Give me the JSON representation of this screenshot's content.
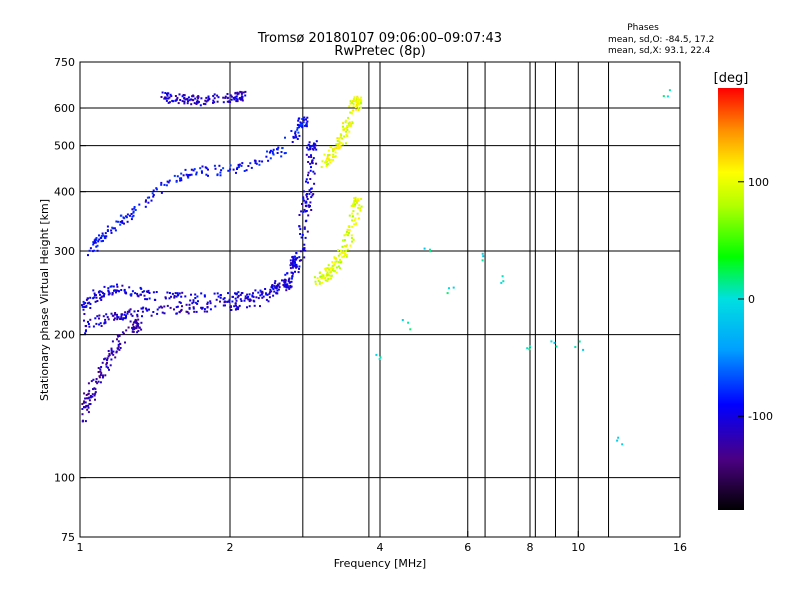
{
  "chart_data": {
    "type": "scatter",
    "title": "Tromsø 20180107 09:06:00–09:07:43",
    "subtitle": "RwPretec (8p)",
    "xlabel": "Frequency [MHz]",
    "ylabel": "Stationary phase Virtual Height [km]",
    "xscale": "log",
    "yscale": "log",
    "xlim": [
      1,
      16
    ],
    "ylim": [
      75,
      750
    ],
    "xticks": [
      1,
      2,
      4,
      6,
      8,
      10,
      16
    ],
    "yticks": [
      75,
      100,
      200,
      300,
      400,
      500,
      600,
      750
    ],
    "x_gridlines": [
      2,
      4,
      6,
      8,
      10
    ],
    "y_gridlines": [
      100,
      200,
      300,
      400,
      500,
      600
    ],
    "x_minor_lines": [
      2.8,
      3.8,
      6.5,
      8.2,
      9.0,
      11.5
    ],
    "legend": {
      "title": "Phases",
      "lines": [
        "mean, sd,O: -84.5, 17.2",
        "mean, sd,X:  93.1, 22.4"
      ]
    },
    "colorbar": {
      "label": "[deg]",
      "range": [
        -180,
        180
      ],
      "ticks": [
        100,
        0,
        -100
      ],
      "tick_labels": [
        "100",
        "0",
        "-100"
      ]
    },
    "series": [
      {
        "trace": "o_low_band",
        "phase": -100,
        "x": [
          1.0,
          1.05,
          1.1,
          1.2,
          1.3,
          1.5,
          1.7,
          2.0,
          2.2,
          2.4,
          2.6,
          2.7
        ],
        "y": [
          225,
          235,
          245,
          250,
          245,
          240,
          238,
          240,
          242,
          248,
          262,
          285
        ]
      },
      {
        "trace": "o_low_band_lower",
        "phase": -110,
        "x": [
          1.0,
          1.1,
          1.2,
          1.3,
          1.5,
          1.7,
          2.0,
          2.3,
          2.6
        ],
        "y": [
          205,
          215,
          220,
          222,
          225,
          228,
          230,
          235,
          255
        ]
      },
      {
        "trace": "o_bottom_tail",
        "phase": -120,
        "x": [
          1.0,
          1.02,
          1.05,
          1.1,
          1.15,
          1.2,
          1.3
        ],
        "y": [
          130,
          140,
          150,
          165,
          180,
          195,
          210
        ]
      },
      {
        "trace": "o_upper_branch",
        "phase": -90,
        "x": [
          1.05,
          1.1,
          1.2,
          1.3,
          1.5,
          1.7,
          2.0,
          2.3,
          2.6,
          2.8
        ],
        "y": [
          300,
          320,
          340,
          370,
          420,
          440,
          445,
          460,
          500,
          560
        ]
      },
      {
        "trace": "o_cusp",
        "phase": -105,
        "x": [
          2.75,
          2.8,
          2.85,
          2.9,
          2.92
        ],
        "y": [
          270,
          330,
          380,
          420,
          500
        ]
      },
      {
        "trace": "o_top",
        "phase": -110,
        "x": [
          1.45,
          1.55,
          1.65,
          1.75,
          1.95,
          2.1
        ],
        "y": [
          635,
          628,
          625,
          622,
          628,
          635
        ]
      },
      {
        "trace": "x_trace",
        "phase": 95,
        "x": [
          3.0,
          3.1,
          3.2,
          3.3,
          3.4,
          3.5,
          3.6
        ],
        "y": [
          260,
          265,
          275,
          285,
          300,
          330,
          380
        ]
      },
      {
        "trace": "x_upper",
        "phase": 100,
        "x": [
          3.1,
          3.2,
          3.3,
          3.4,
          3.5,
          3.6
        ],
        "y": [
          450,
          480,
          500,
          530,
          580,
          620
        ]
      },
      {
        "trace": "scatter_high_freq",
        "phase": 0,
        "x": [
          4.0,
          4.5,
          5.0,
          5.5,
          6.5,
          7.0,
          8.0,
          9.0,
          10.0,
          12.0,
          15.0
        ],
        "y": [
          180,
          210,
          300,
          250,
          290,
          260,
          190,
          190,
          190,
          120,
          640
        ]
      }
    ]
  }
}
